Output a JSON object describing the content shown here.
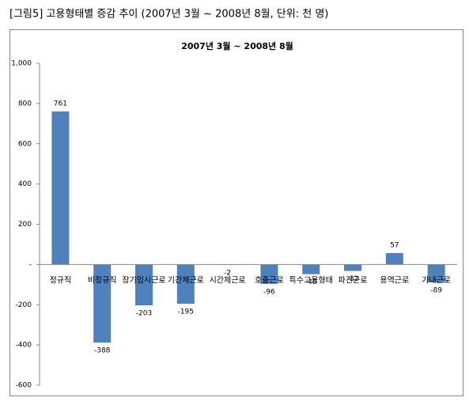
{
  "header": {
    "caption": "[그림5] 고용형태별 증감 추이 (2007년 3월 ~ 2008년 8월, 단위: 천 명)"
  },
  "chart_data": {
    "type": "bar",
    "title": "2007년 3월 ~ 2008년 8월",
    "categories": [
      "정규직",
      "비정규직",
      "장기임시근로",
      "기간제근로",
      "시간제근로",
      "호출근로",
      "특수고용형태",
      "파견근로",
      "용역근로",
      "가내근로"
    ],
    "values": [
      761,
      -388,
      -203,
      -195,
      -2,
      -96,
      -48,
      -32,
      57,
      -89
    ],
    "color": "#4f81bd",
    "ylim": [
      -600,
      1000
    ],
    "yticks": [
      {
        "value": 1000,
        "label": "1,000"
      },
      800,
      600,
      400,
      200,
      {
        "value": 0,
        "label": "-"
      },
      -200,
      -400,
      -600
    ]
  }
}
